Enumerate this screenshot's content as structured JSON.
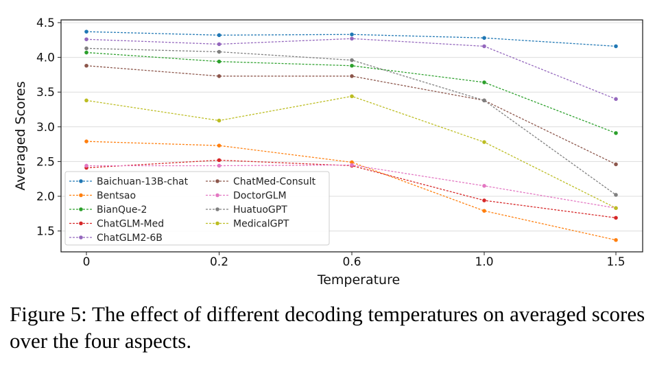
{
  "chart_data": {
    "type": "line",
    "xlabel": "Temperature",
    "ylabel": "Averaged Scores",
    "categories": [
      "0",
      "0.2",
      "0.6",
      "1.0",
      "1.5"
    ],
    "ylim": [
      1.2,
      4.52
    ],
    "yticks": [
      "1.5",
      "2.0",
      "2.5",
      "3.0",
      "3.5",
      "4.0",
      "4.5"
    ],
    "grid": "horizontal",
    "legend_position": "lower-left",
    "line_style": "dashed with point markers",
    "series": [
      {
        "name": "Baichuan-13B-chat",
        "color": "#1f77b4",
        "values": [
          4.37,
          4.32,
          4.33,
          4.28,
          4.16
        ]
      },
      {
        "name": "Bentsao",
        "color": "#ff7f0e",
        "values": [
          2.79,
          2.73,
          2.49,
          1.79,
          1.37
        ]
      },
      {
        "name": "BianQue-2",
        "color": "#2ca02c",
        "values": [
          4.07,
          3.94,
          3.88,
          3.64,
          2.91
        ]
      },
      {
        "name": "ChatGLM-Med",
        "color": "#d62728",
        "values": [
          2.41,
          2.52,
          2.44,
          1.94,
          1.69
        ]
      },
      {
        "name": "ChatGLM2-6B",
        "color": "#9467bd",
        "values": [
          4.26,
          4.19,
          4.27,
          4.16,
          3.4
        ]
      },
      {
        "name": "ChatMed-Consult",
        "color": "#8c564b",
        "values": [
          3.88,
          3.73,
          3.73,
          3.38,
          2.46
        ]
      },
      {
        "name": "DoctorGLM",
        "color": "#e377c2",
        "values": [
          2.44,
          2.44,
          2.45,
          2.15,
          1.83
        ]
      },
      {
        "name": "HuatuoGPT",
        "color": "#7f7f7f",
        "values": [
          4.13,
          4.08,
          3.96,
          3.38,
          2.02
        ]
      },
      {
        "name": "MedicalGPT",
        "color": "#bcbd22",
        "values": [
          3.38,
          3.09,
          3.44,
          2.78,
          1.83
        ]
      }
    ]
  },
  "caption": "Figure 5: The effect of different decoding temperatures on averaged scores over the four aspects."
}
